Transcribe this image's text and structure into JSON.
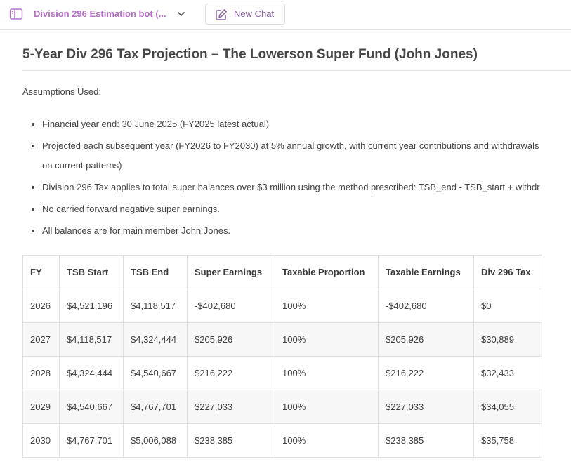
{
  "header": {
    "bot_title": "Division 296 Estimation bot (...",
    "new_chat_label": "New Chat",
    "accent_color": "#b56fc9"
  },
  "document": {
    "title": "5-Year Div 296 Tax Projection – The Lowerson Super Fund (John Jones)",
    "assumptions_heading": "Assumptions Used:",
    "assumptions": [
      "Financial year end: 30 June 2025 (FY2025 latest actual)",
      "Projected each subsequent year (FY2026 to FY2030) at 5% annual growth, with current year contributions and withdrawals",
      "on current patterns)",
      "Division 296 Tax applies to total super balances over $3 million using the method prescribed: TSB_end - TSB_start + withdr",
      "No carried forward negative super earnings.",
      "All balances are for main member John Jones."
    ]
  },
  "table": {
    "headers": [
      "FY",
      "TSB Start",
      "TSB End",
      "Super Earnings",
      "Taxable Proportion",
      "Taxable Earnings",
      "Div 296 Tax"
    ],
    "rows": [
      [
        "2026",
        "$4,521,196",
        "$4,118,517",
        "-$402,680",
        "100%",
        "-$402,680",
        "$0"
      ],
      [
        "2027",
        "$4,118,517",
        "$4,324,444",
        "$205,926",
        "100%",
        "$205,926",
        "$30,889"
      ],
      [
        "2028",
        "$4,324,444",
        "$4,540,667",
        "$216,222",
        "100%",
        "$216,222",
        "$32,433"
      ],
      [
        "2029",
        "$4,540,667",
        "$4,767,701",
        "$227,033",
        "100%",
        "$227,033",
        "$34,055"
      ],
      [
        "2030",
        "$4,767,701",
        "$5,006,088",
        "$238,385",
        "100%",
        "$238,385",
        "$35,758"
      ]
    ]
  }
}
